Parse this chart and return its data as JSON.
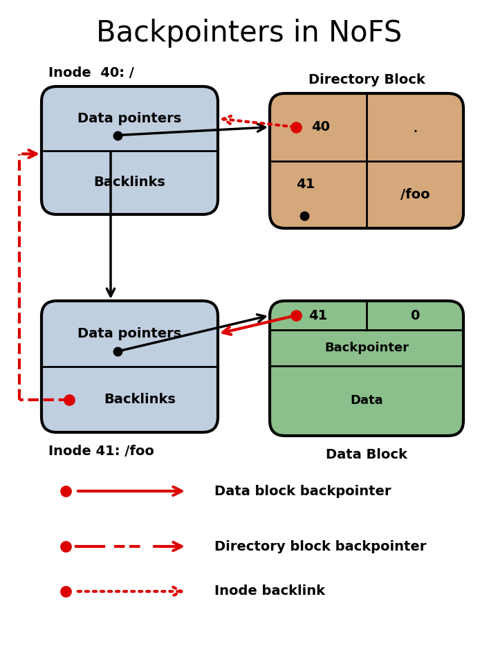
{
  "title": "Backpointers in NoFS",
  "title_fontsize": 30,
  "inode40_label": "Inode  40: /",
  "inode41_label": "Inode 41: /foo",
  "dirblock_label": "Directory Block",
  "datablock_label": "Data Block",
  "inode_bg": "#c0cfe0",
  "dir_block_bg": "#d4a87a",
  "data_block_bg": "#8bbf8b",
  "data_block_top_bg": "#a8d4a8",
  "legend_solid_label": "Data block backpointer",
  "legend_dash_label": "Directory block backpointer",
  "legend_dotdash_label": "Inode backlink",
  "arrow_color": "#dd0000",
  "black": "#000000",
  "white": "#ffffff"
}
